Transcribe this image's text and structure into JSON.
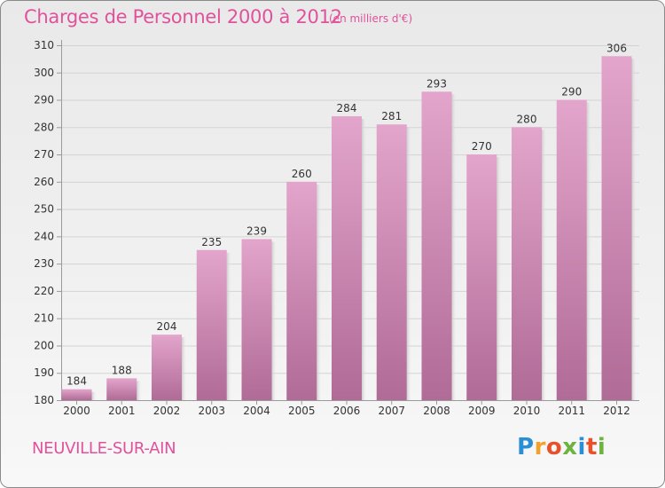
{
  "title": "Charges de Personnel 2000 à 2012",
  "subtitle": "(en milliers d'€)",
  "commune": "NEUVILLE-SUR-AIN",
  "logo": {
    "letters": [
      "P",
      "r",
      "o",
      "x",
      "i",
      "t",
      "i"
    ],
    "colors": [
      "#2b8fd6",
      "#f2a12b",
      "#e8522a",
      "#6cb33f",
      "#2b8fd6",
      "#e8522a",
      "#6cb33f"
    ]
  },
  "colors": {
    "accent": "#e0529c",
    "bar_top": "#e3a5cb",
    "bar_bottom": "#b06b97",
    "grid": "#d3d3d3",
    "axis_text": "#333333"
  },
  "chart_data": {
    "type": "bar",
    "categories": [
      "2000",
      "2001",
      "2002",
      "2003",
      "2004",
      "2005",
      "2006",
      "2007",
      "2008",
      "2009",
      "2010",
      "2011",
      "2012"
    ],
    "values": [
      184,
      188,
      204,
      235,
      239,
      260,
      284,
      281,
      293,
      270,
      280,
      290,
      306
    ],
    "value_labels": [
      "184",
      "188",
      "204",
      "235",
      "239",
      "260",
      "284",
      "281",
      "293",
      "270",
      "280",
      "290",
      "306"
    ],
    "yticks": [
      "180",
      "190",
      "200",
      "210",
      "220",
      "230",
      "240",
      "250",
      "260",
      "270",
      "280",
      "290",
      "300",
      "310"
    ],
    "ylim": [
      180,
      310
    ],
    "grid": true,
    "legend": "none"
  }
}
